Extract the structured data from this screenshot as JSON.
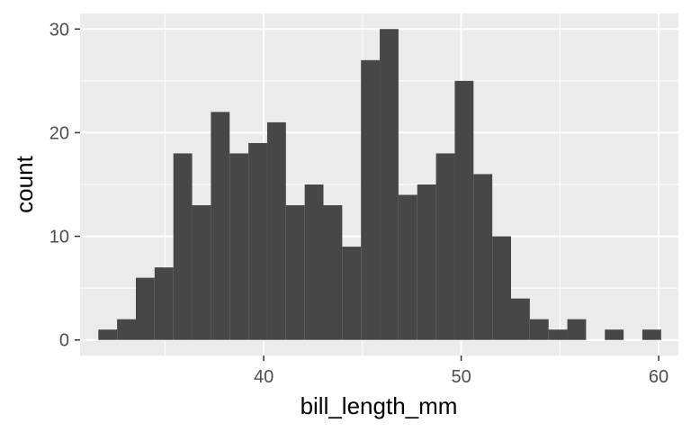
{
  "chart_data": {
    "type": "bar",
    "xlabel": "bill_length_mm",
    "ylabel": "count",
    "xlim": [
      30.7,
      61.0
    ],
    "ylim": [
      -1.5,
      31.5
    ],
    "grid": true,
    "x_ticks": [
      40,
      50,
      60
    ],
    "y_ticks": [
      0,
      10,
      20,
      30
    ],
    "bin_width": 0.95,
    "bin_centers": [
      32.1,
      33.05,
      34.0,
      34.95,
      35.9,
      36.85,
      37.8,
      38.75,
      39.7,
      40.65,
      41.6,
      42.55,
      43.5,
      44.45,
      45.4,
      46.35,
      47.3,
      48.25,
      49.2,
      50.15,
      51.1,
      52.05,
      53.0,
      53.95,
      54.9,
      55.85,
      56.8,
      57.75,
      58.7,
      59.65
    ],
    "counts": [
      1,
      2,
      6,
      7,
      18,
      13,
      22,
      18,
      19,
      21,
      13,
      15,
      13,
      9,
      27,
      30,
      14,
      15,
      18,
      25,
      16,
      10,
      4,
      2,
      1,
      2,
      0,
      1,
      0,
      1
    ],
    "colors": {
      "panel": "#ebebeb",
      "grid_major": "#ffffff",
      "bar": "#474747",
      "tick": "#333333"
    }
  }
}
